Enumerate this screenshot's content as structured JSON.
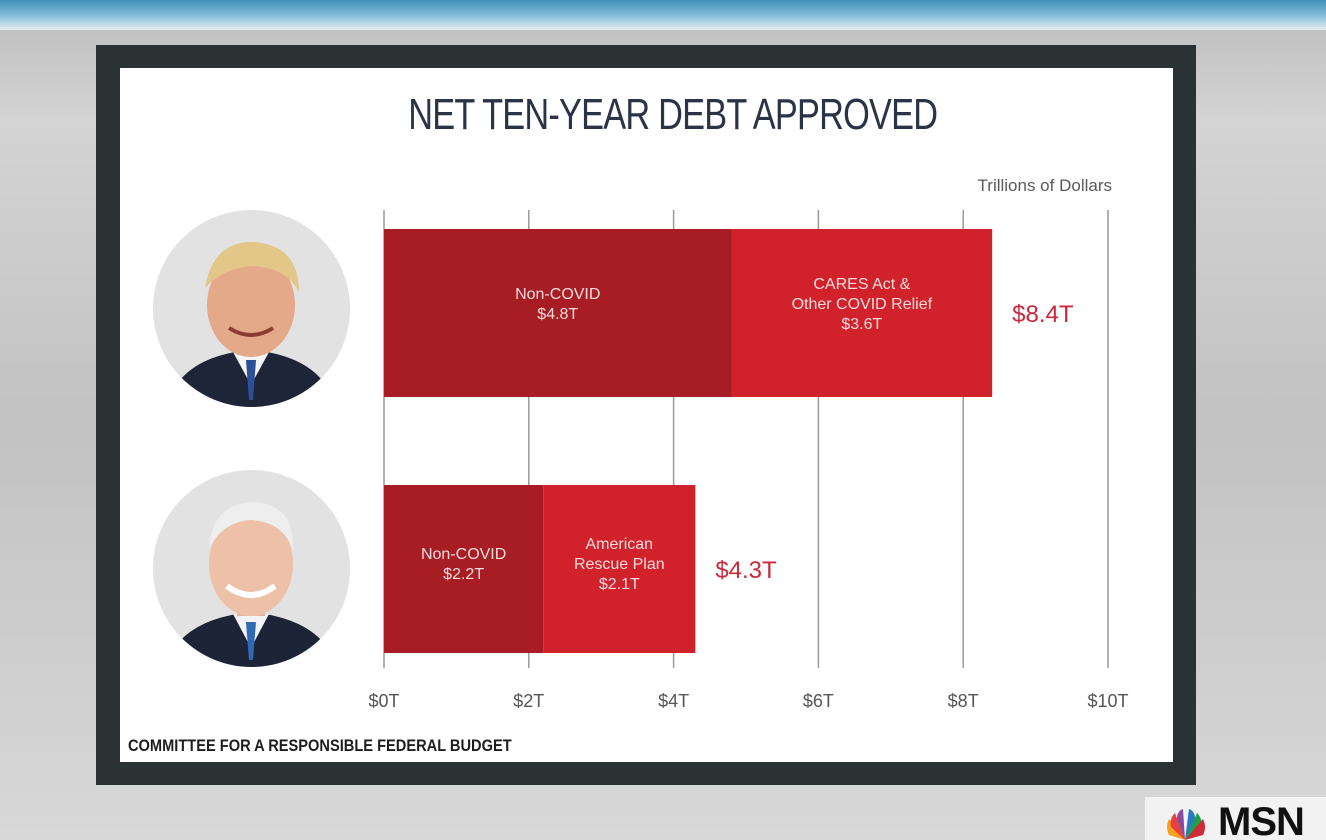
{
  "chart_data": {
    "type": "bar",
    "orientation": "horizontal",
    "stacked": true,
    "title": "NET TEN-YEAR DEBT APPROVED",
    "unit_label": "Trillions of Dollars",
    "xlim": [
      0,
      10
    ],
    "x_ticks": [
      "$0T",
      "$2T",
      "$4T",
      "$6T",
      "$8T",
      "$10T"
    ],
    "grid": true,
    "rows": [
      {
        "total": 8.4,
        "total_label": "$8.4T",
        "segments": [
          {
            "lines": [
              "Non-COVID",
              "$4.8T"
            ],
            "value": 4.8,
            "color": "#a81d24"
          },
          {
            "lines": [
              "CARES Act &",
              "Other COVID Relief",
              "$3.6T"
            ],
            "value": 3.6,
            "color": "#d1222b"
          }
        ]
      },
      {
        "total": 4.3,
        "total_label": "$4.3T",
        "segments": [
          {
            "lines": [
              "Non-COVID",
              "$2.2T"
            ],
            "value": 2.2,
            "color": "#a81d24"
          },
          {
            "lines": [
              "American",
              "Rescue Plan",
              "$2.1T"
            ],
            "value": 2.1,
            "color": "#d1222b"
          }
        ]
      }
    ],
    "total_label_color": "#c8283a"
  },
  "source": "COMMITTEE FOR A RESPONSIBLE FEDERAL BUDGET",
  "logo": {
    "text": "MSN"
  }
}
